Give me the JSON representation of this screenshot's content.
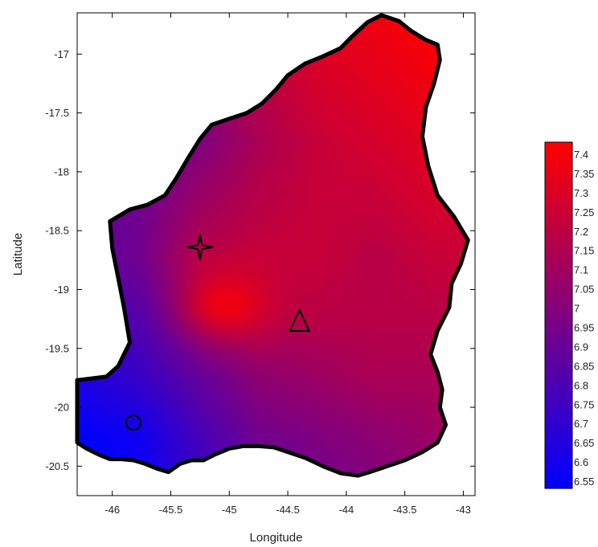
{
  "chart_data": {
    "type": "heatmap",
    "title": "",
    "xlabel": "Longitude",
    "ylabel": "Latitude",
    "xlim": [
      -46.3,
      -42.9
    ],
    "ylim": [
      -20.75,
      -16.65
    ],
    "x_ticks": [
      -46,
      -45.5,
      -45,
      -44.5,
      -44,
      -43.5,
      -43
    ],
    "x_tick_labels": [
      "-46",
      "-45.5",
      "-45",
      "-44.5",
      "-44",
      "-43.5",
      "-43"
    ],
    "y_ticks": [
      -17,
      -17.5,
      -18,
      -18.5,
      -19,
      -19.5,
      -20,
      -20.5
    ],
    "y_tick_labels": [
      "-17",
      "-17.5",
      "-18",
      "-18.5",
      "-19",
      "-19.5",
      "-20",
      "-20.5"
    ],
    "grid": false,
    "colorbar": {
      "position": "right",
      "min": 6.55,
      "max": 7.45,
      "levels": [
        7.4,
        7.35,
        7.3,
        7.25,
        7.2,
        7.15,
        7.1,
        7.05,
        7,
        6.95,
        6.9,
        6.85,
        6.8,
        6.75,
        6.7,
        6.65,
        6.6,
        6.55
      ],
      "level_labels": [
        "7.4",
        "7.35",
        "7.3",
        "7.25",
        "7.2",
        "7.15",
        "7.1",
        "7.05",
        "7",
        "6.95",
        "6.9",
        "6.85",
        "6.8",
        "6.75",
        "6.7",
        "6.65",
        "6.6",
        "6.55"
      ],
      "colors": [
        "#0000ff",
        "#ff0000"
      ]
    },
    "boundary": [
      [
        -46.3,
        -19.77
      ],
      [
        -46.05,
        -19.74
      ],
      [
        -45.95,
        -19.65
      ],
      [
        -45.85,
        -19.45
      ],
      [
        -45.9,
        -19.15
      ],
      [
        -45.95,
        -18.9
      ],
      [
        -46.0,
        -18.65
      ],
      [
        -46.02,
        -18.42
      ],
      [
        -45.85,
        -18.32
      ],
      [
        -45.7,
        -18.28
      ],
      [
        -45.55,
        -18.2
      ],
      [
        -45.45,
        -18.05
      ],
      [
        -45.35,
        -17.88
      ],
      [
        -45.25,
        -17.72
      ],
      [
        -45.15,
        -17.6
      ],
      [
        -45.0,
        -17.55
      ],
      [
        -44.85,
        -17.5
      ],
      [
        -44.72,
        -17.42
      ],
      [
        -44.6,
        -17.3
      ],
      [
        -44.5,
        -17.18
      ],
      [
        -44.35,
        -17.08
      ],
      [
        -44.2,
        -17.02
      ],
      [
        -44.05,
        -16.95
      ],
      [
        -43.95,
        -16.85
      ],
      [
        -43.82,
        -16.73
      ],
      [
        -43.7,
        -16.67
      ],
      [
        -43.55,
        -16.72
      ],
      [
        -43.45,
        -16.8
      ],
      [
        -43.32,
        -16.88
      ],
      [
        -43.22,
        -16.92
      ],
      [
        -43.2,
        -17.05
      ],
      [
        -43.25,
        -17.25
      ],
      [
        -43.32,
        -17.45
      ],
      [
        -43.35,
        -17.7
      ],
      [
        -43.3,
        -17.95
      ],
      [
        -43.22,
        -18.2
      ],
      [
        -43.08,
        -18.38
      ],
      [
        -42.96,
        -18.58
      ],
      [
        -43.02,
        -18.78
      ],
      [
        -43.1,
        -18.95
      ],
      [
        -43.12,
        -19.15
      ],
      [
        -43.22,
        -19.35
      ],
      [
        -43.28,
        -19.55
      ],
      [
        -43.22,
        -19.7
      ],
      [
        -43.18,
        -19.85
      ],
      [
        -43.2,
        -20.0
      ],
      [
        -43.15,
        -20.15
      ],
      [
        -43.22,
        -20.3
      ],
      [
        -43.35,
        -20.38
      ],
      [
        -43.5,
        -20.45
      ],
      [
        -43.65,
        -20.5
      ],
      [
        -43.8,
        -20.55
      ],
      [
        -43.9,
        -20.58
      ],
      [
        -44.05,
        -20.56
      ],
      [
        -44.2,
        -20.5
      ],
      [
        -44.35,
        -20.43
      ],
      [
        -44.5,
        -20.38
      ],
      [
        -44.62,
        -20.34
      ],
      [
        -44.75,
        -20.33
      ],
      [
        -44.88,
        -20.33
      ],
      [
        -45.0,
        -20.35
      ],
      [
        -45.12,
        -20.4
      ],
      [
        -45.22,
        -20.45
      ],
      [
        -45.32,
        -20.45
      ],
      [
        -45.42,
        -20.48
      ],
      [
        -45.52,
        -20.55
      ],
      [
        -45.62,
        -20.52
      ],
      [
        -45.72,
        -20.48
      ],
      [
        -45.82,
        -20.45
      ],
      [
        -45.92,
        -20.44
      ],
      [
        -46.02,
        -20.44
      ],
      [
        -46.12,
        -20.4
      ],
      [
        -46.22,
        -20.35
      ],
      [
        -46.3,
        -20.3
      ]
    ],
    "surface_values": {
      "x": [
        -46.3,
        -45.75,
        -45.25,
        -44.75,
        -44.25,
        -43.75,
        -43.25
      ],
      "y": [
        -16.65,
        -17.25,
        -17.75,
        -18.25,
        -18.75,
        -19.25,
        -19.75,
        -20.25,
        -20.75
      ],
      "z": [
        [
          7.05,
          7.1,
          7.2,
          7.3,
          7.35,
          7.4,
          7.45
        ],
        [
          7.0,
          7.02,
          7.05,
          7.2,
          7.3,
          7.35,
          7.4
        ],
        [
          6.95,
          6.97,
          7.0,
          7.15,
          7.25,
          7.3,
          7.35
        ],
        [
          6.9,
          6.95,
          7.1,
          7.2,
          7.25,
          7.25,
          7.3
        ],
        [
          6.85,
          6.95,
          7.2,
          7.25,
          7.25,
          7.2,
          7.25
        ],
        [
          6.75,
          6.85,
          7.05,
          7.2,
          7.2,
          7.2,
          7.2
        ],
        [
          6.65,
          6.75,
          6.9,
          7.05,
          7.1,
          7.15,
          7.15
        ],
        [
          6.55,
          6.6,
          6.8,
          6.95,
          7.0,
          7.05,
          7.1
        ],
        [
          6.55,
          6.6,
          6.75,
          6.9,
          6.95,
          7.0,
          7.05
        ]
      ]
    },
    "hotspot": {
      "x": -45.02,
      "y": -19.12,
      "value": 7.4
    },
    "markers": [
      {
        "shape": "star",
        "x": -45.25,
        "y": -18.64
      },
      {
        "shape": "triangle",
        "x": -44.4,
        "y": -19.27
      },
      {
        "shape": "circle",
        "x": -45.82,
        "y": -20.13
      }
    ]
  }
}
